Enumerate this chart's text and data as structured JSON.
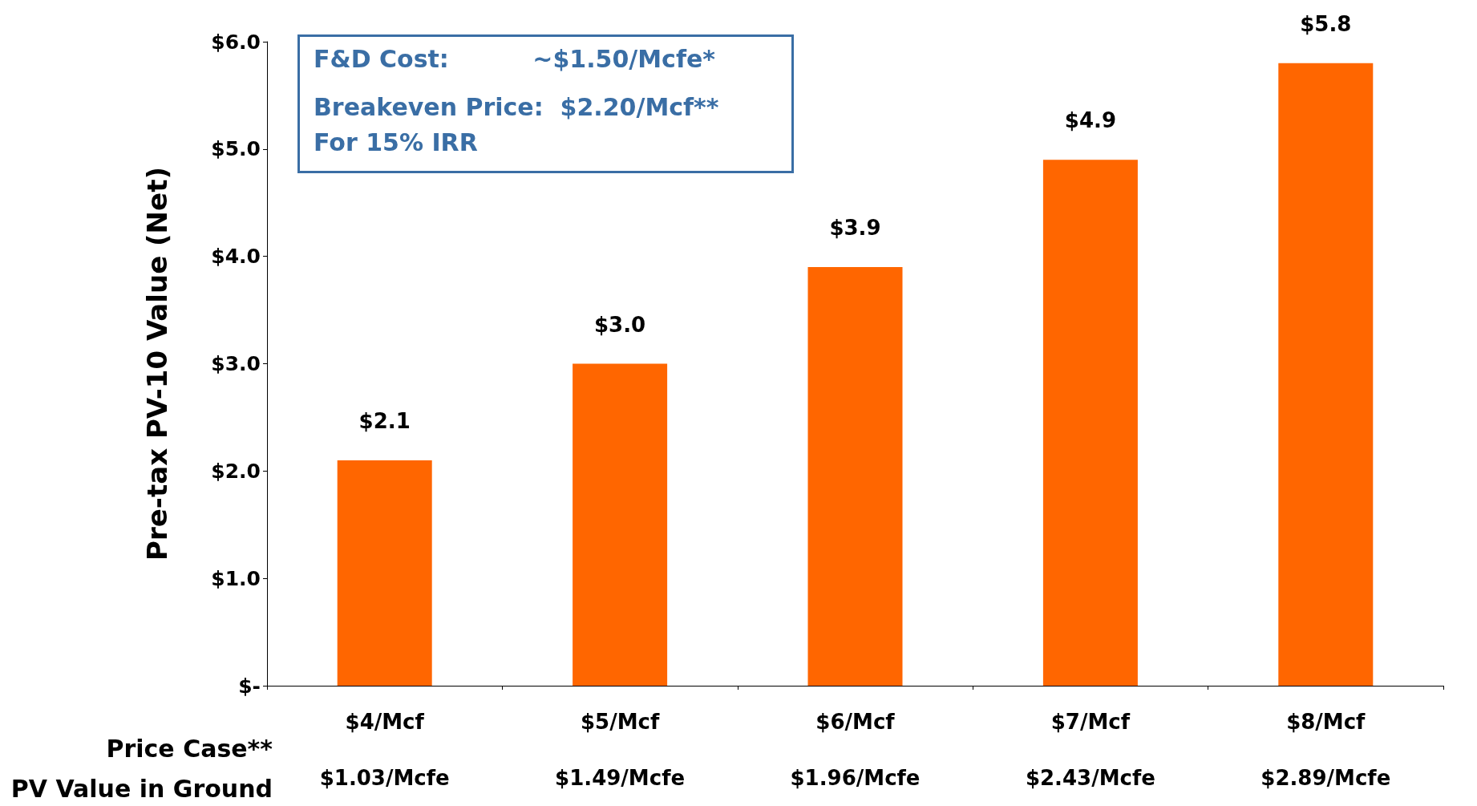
{
  "chart_data": {
    "type": "bar",
    "categories": [
      "$4/Mcf\n$1.03/Mcfe",
      "$5/Mcf\n$1.49/Mcfe",
      "$6/Mcf\n$1.96/Mcfe",
      "$7/Mcf\n$2.43/Mcfe",
      "$8/Mcf\n$2.89/Mcfe"
    ],
    "values": [
      2.1,
      3.0,
      3.9,
      4.9,
      5.8
    ],
    "value_labels": [
      "$2.1",
      "$3.0",
      "$3.9",
      "$4.9",
      "$5.8"
    ],
    "color": "#ff6600",
    "ylabel": "Pre-tax PV-10 Value (Net)",
    "ylim": [
      0,
      6
    ],
    "yticks": [
      {
        "value": 0,
        "label": "$-"
      },
      {
        "value": 1,
        "label": "$1.0"
      },
      {
        "value": 2,
        "label": "$2.0"
      },
      {
        "value": 3,
        "label": "$3.0"
      },
      {
        "value": 4,
        "label": "$4.0"
      },
      {
        "value": 5,
        "label": "$5.0"
      },
      {
        "value": 6,
        "label": "$6.0"
      }
    ],
    "annotations": [
      "F&D Cost:          ~$1.50/Mcfe*",
      "Breakeven Price:  $2.20/Mcf**",
      "For 15% IRR",
      "Price Case**",
      "PV Value in Ground"
    ],
    "grid": false
  }
}
